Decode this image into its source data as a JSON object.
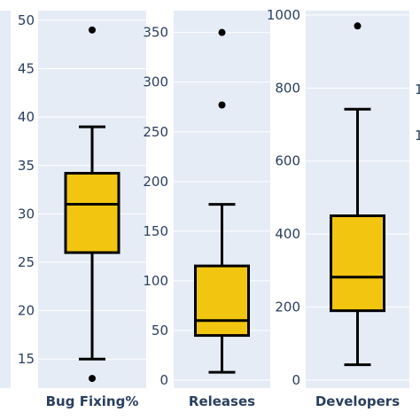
{
  "chart_data": [
    {
      "type": "box",
      "xlabel": "Bug Fixing%",
      "ylim": [
        12,
        51
      ],
      "yticks": [
        15,
        20,
        25,
        30,
        35,
        40,
        45,
        50
      ],
      "box": {
        "min": 15,
        "q1": 26,
        "median": 31,
        "q3": 34.2,
        "max": 39
      },
      "outliers": [
        49,
        13
      ],
      "color": "#f2c511"
    },
    {
      "type": "box",
      "xlabel": "Releases",
      "ylim": [
        -8,
        372
      ],
      "yticks": [
        0,
        50,
        100,
        150,
        200,
        250,
        300,
        350
      ],
      "box": {
        "min": 8,
        "q1": 45,
        "median": 60,
        "q3": 115,
        "max": 177
      },
      "outliers": [
        350,
        277
      ],
      "color": "#f2c511"
    },
    {
      "type": "box",
      "xlabel": "Developers",
      "ylim": [
        -22,
        1012
      ],
      "yticks": [
        0,
        200,
        400,
        600,
        800,
        1000
      ],
      "box": {
        "min": 42,
        "q1": 190,
        "median": 282,
        "q3": 450,
        "max": 742
      },
      "outliers": [
        970
      ],
      "color": "#f2c511"
    }
  ],
  "edge_ticks": [
    "1",
    "1"
  ]
}
